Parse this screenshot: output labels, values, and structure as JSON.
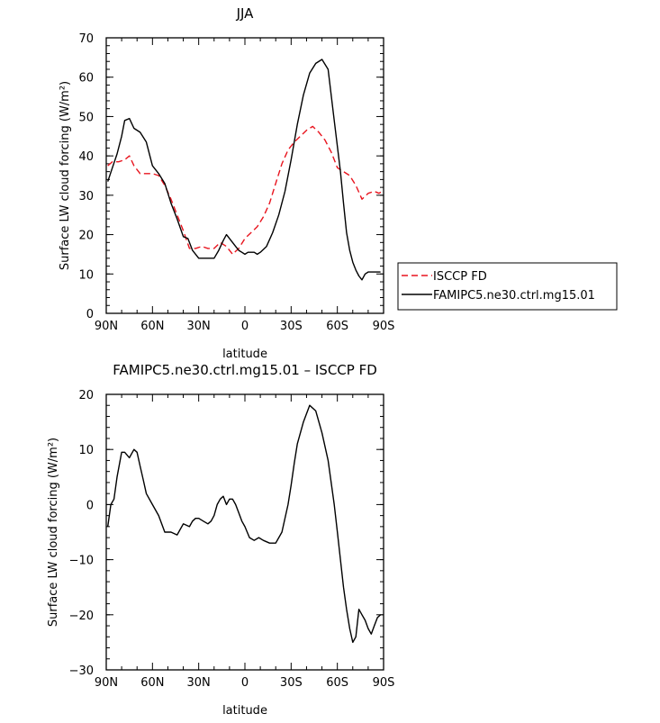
{
  "chart_data": [
    {
      "type": "line",
      "title": "JJA",
      "xlabel": "latitude",
      "ylabel": "Surface LW cloud forcing (W/m²)",
      "xlim": [
        90,
        -90
      ],
      "ylim": [
        0,
        70
      ],
      "x_tick_values": [
        90,
        60,
        30,
        0,
        -30,
        -60,
        -90
      ],
      "x_tick_labels": [
        "90N",
        "60N",
        "30N",
        "0",
        "30S",
        "60S",
        "90S"
      ],
      "y_ticks": [
        0,
        10,
        20,
        30,
        40,
        50,
        60,
        70
      ],
      "legend_position": "right",
      "series": [
        {
          "name": "ISCCP FD",
          "color": "#e8141e",
          "dash": "dashed",
          "x": [
            89,
            86,
            82,
            78,
            75,
            72,
            68,
            64,
            60,
            56,
            52,
            48,
            44,
            40,
            36,
            32,
            28,
            24,
            20,
            16,
            12,
            8,
            4,
            0,
            -4,
            -8,
            -12,
            -16,
            -20,
            -24,
            -28,
            -32,
            -36,
            -40,
            -44,
            -48,
            -52,
            -56,
            -60,
            -64,
            -68,
            -72,
            -76,
            -80,
            -84,
            -87,
            -89
          ],
          "values": [
            37.5,
            38.5,
            38.5,
            39,
            40,
            37.5,
            35.5,
            35.5,
            35.5,
            35,
            32.5,
            29,
            25,
            21,
            16.5,
            16.5,
            17,
            16.5,
            16.5,
            18,
            17,
            15,
            16.5,
            19,
            20.5,
            22,
            24.5,
            28,
            33,
            38,
            41.5,
            43.5,
            45,
            46.5,
            47.5,
            46,
            44,
            41,
            37,
            36,
            35,
            32.5,
            29,
            30.5,
            31,
            30.5,
            31
          ]
        },
        {
          "name": "FAMIPC5.ne30.ctrl.mg15.01",
          "color": "#000000",
          "dash": "solid",
          "x": [
            89,
            86,
            83,
            80,
            78,
            75,
            72,
            68,
            64,
            60,
            56,
            52,
            48,
            44,
            40,
            37,
            34,
            30,
            27,
            24,
            20,
            17,
            14,
            12,
            10,
            8,
            6,
            4,
            2,
            0,
            -2,
            -4,
            -6,
            -8,
            -10,
            -14,
            -18,
            -22,
            -26,
            -30,
            -34,
            -38,
            -42,
            -46,
            -50,
            -54,
            -58,
            -62,
            -64,
            -66,
            -68,
            -70,
            -72,
            -74,
            -76,
            -78,
            -80,
            -82,
            -84,
            -86,
            -88
          ],
          "values": [
            33.5,
            37,
            40.5,
            45,
            49,
            49.5,
            47,
            46,
            43.5,
            37.5,
            35.5,
            33,
            28,
            24,
            19.5,
            19,
            16,
            14,
            14,
            14,
            14,
            16,
            18.5,
            20,
            19,
            18,
            17,
            16,
            15.5,
            15,
            15.5,
            15.5,
            15.5,
            15,
            15.5,
            17,
            20.5,
            25,
            31,
            39,
            48,
            55.5,
            61,
            63.5,
            64.5,
            62,
            49,
            36,
            28,
            20.5,
            16,
            13,
            11,
            9.5,
            8.5,
            10,
            10.5,
            10.5,
            10.5,
            10.5,
            10.5
          ]
        }
      ]
    },
    {
      "type": "line",
      "title": "FAMIPC5.ne30.ctrl.mg15.01 – ISCCP FD",
      "xlabel": "latitude",
      "ylabel": "Surface LW cloud forcing (W/m²)",
      "xlim": [
        90,
        -90
      ],
      "ylim": [
        -30,
        20
      ],
      "x_tick_values": [
        90,
        60,
        30,
        0,
        -30,
        -60,
        -90
      ],
      "x_tick_labels": [
        "90N",
        "60N",
        "30N",
        "0",
        "30S",
        "60S",
        "90S"
      ],
      "y_ticks": [
        -30,
        -20,
        -10,
        0,
        10,
        20
      ],
      "series": [
        {
          "color": "#000000",
          "dash": "solid",
          "x": [
            89,
            87,
            85,
            83,
            80,
            78,
            75,
            72,
            70,
            68,
            66,
            64,
            60,
            56,
            52,
            48,
            44,
            40,
            36,
            34,
            32,
            30,
            27,
            24,
            22,
            20,
            18,
            16,
            14,
            12,
            10,
            8,
            6,
            4,
            2,
            0,
            -3,
            -6,
            -9,
            -12,
            -16,
            -20,
            -24,
            -28,
            -30,
            -32,
            -34,
            -38,
            -42,
            -46,
            -50,
            -54,
            -58,
            -60,
            -62,
            -64,
            -66,
            -68,
            -70,
            -72,
            -74,
            -76,
            -78,
            -80,
            -82,
            -84,
            -86,
            -88
          ],
          "values": [
            -4,
            0,
            1,
            5,
            9.5,
            9.5,
            8.5,
            10,
            9.5,
            7,
            4.5,
            2,
            0,
            -2,
            -5,
            -5,
            -5.5,
            -3.5,
            -4,
            -3,
            -2.5,
            -2.5,
            -3,
            -3.5,
            -3,
            -2,
            0,
            1,
            1.5,
            0,
            1,
            1,
            0,
            -1.5,
            -3,
            -4,
            -6,
            -6.5,
            -6,
            -6.5,
            -7,
            -7,
            -5,
            0,
            3.5,
            7.5,
            11,
            15,
            18,
            17,
            13,
            8,
            0,
            -5,
            -10,
            -15,
            -19,
            -22.5,
            -25,
            -24,
            -19,
            -20,
            -21,
            -22.5,
            -23.5,
            -22,
            -20.5,
            -20
          ]
        }
      ]
    }
  ]
}
